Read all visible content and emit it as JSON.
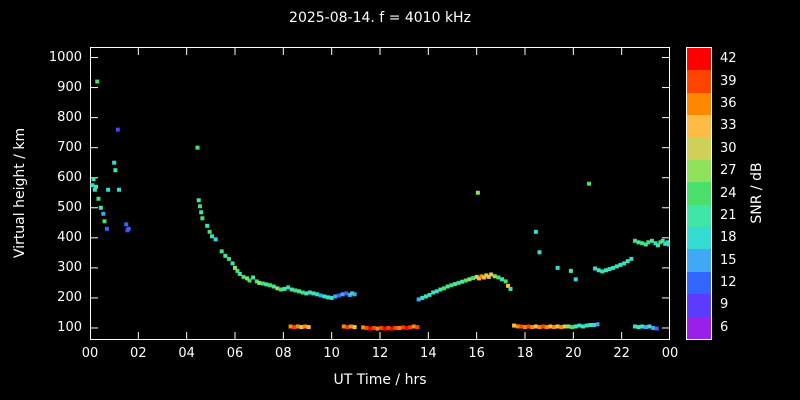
{
  "title": "2025-08-14. f = 4010 kHz",
  "axes": {
    "x": {
      "label": "UT Time / hrs",
      "tick_hours": [
        0,
        2,
        4,
        6,
        8,
        10,
        12,
        14,
        16,
        18,
        20,
        22,
        24
      ],
      "tick_labels": [
        "00",
        "02",
        "04",
        "06",
        "08",
        "10",
        "12",
        "14",
        "16",
        "18",
        "20",
        "22",
        "00"
      ]
    },
    "y": {
      "label": "Virtual height / km",
      "tick_values": [
        100,
        200,
        300,
        400,
        500,
        600,
        700,
        800,
        900,
        1000
      ]
    }
  },
  "colorbar": {
    "label": "SNR / dB",
    "stops": [
      {
        "value": 42,
        "color": "#ff0000"
      },
      {
        "value": 39,
        "color": "#ff4400"
      },
      {
        "value": 36,
        "color": "#ff8800"
      },
      {
        "value": 33,
        "color": "#ffbb44"
      },
      {
        "value": 30,
        "color": "#cfd157"
      },
      {
        "value": 27,
        "color": "#8fe05a"
      },
      {
        "value": 24,
        "color": "#4ade6b"
      },
      {
        "value": 21,
        "color": "#3fe6a8"
      },
      {
        "value": 18,
        "color": "#35dcd2"
      },
      {
        "value": 15,
        "color": "#3fa9f5"
      },
      {
        "value": 12,
        "color": "#3366ff"
      },
      {
        "value": 9,
        "color": "#5a3bff"
      },
      {
        "value": 6,
        "color": "#9a1fe8"
      }
    ]
  },
  "chart_data": {
    "type": "scatter",
    "title": "2025-08-14. f = 4010 kHz",
    "xlabel": "UT Time / hrs",
    "ylabel": "Virtual height / km",
    "colorbar_label": "SNR / dB",
    "xlim": [
      0,
      24
    ],
    "ylim": [
      60,
      1035
    ],
    "snr_range": [
      6,
      42
    ],
    "points_format": [
      "ut_hours",
      "virtual_height_km",
      "snr_db"
    ],
    "points": [
      [
        0.1,
        575,
        18
      ],
      [
        0.15,
        595,
        21
      ],
      [
        0.2,
        560,
        18
      ],
      [
        0.25,
        570,
        21
      ],
      [
        0.3,
        920,
        24
      ],
      [
        0.35,
        530,
        24
      ],
      [
        0.45,
        500,
        21
      ],
      [
        0.55,
        480,
        15
      ],
      [
        0.6,
        455,
        24
      ],
      [
        0.7,
        430,
        12
      ],
      [
        0.75,
        560,
        18
      ],
      [
        1.0,
        650,
        18
      ],
      [
        1.05,
        625,
        21
      ],
      [
        1.15,
        760,
        9
      ],
      [
        1.2,
        560,
        18
      ],
      [
        1.5,
        445,
        12
      ],
      [
        1.55,
        425,
        9
      ],
      [
        1.6,
        430,
        12
      ],
      [
        4.45,
        700,
        24
      ],
      [
        4.5,
        525,
        21
      ],
      [
        4.55,
        505,
        24
      ],
      [
        4.6,
        485,
        21
      ],
      [
        4.65,
        465,
        24
      ],
      [
        4.85,
        440,
        21
      ],
      [
        4.95,
        420,
        24
      ],
      [
        5.05,
        405,
        21
      ],
      [
        5.2,
        395,
        18
      ],
      [
        5.45,
        355,
        24
      ],
      [
        5.6,
        340,
        21
      ],
      [
        5.75,
        330,
        24
      ],
      [
        5.9,
        315,
        21
      ],
      [
        6.0,
        300,
        27
      ],
      [
        6.1,
        290,
        24
      ],
      [
        6.2,
        280,
        21
      ],
      [
        6.35,
        270,
        24
      ],
      [
        6.5,
        265,
        27
      ],
      [
        6.6,
        258,
        24
      ],
      [
        6.75,
        268,
        21
      ],
      [
        6.9,
        255,
        24
      ],
      [
        7.0,
        250,
        27
      ],
      [
        7.15,
        248,
        24
      ],
      [
        7.3,
        245,
        21
      ],
      [
        7.45,
        242,
        24
      ],
      [
        7.6,
        238,
        21
      ],
      [
        7.75,
        232,
        27
      ],
      [
        7.9,
        228,
        24
      ],
      [
        8.05,
        230,
        21
      ],
      [
        8.2,
        235,
        18
      ],
      [
        8.35,
        228,
        21
      ],
      [
        8.5,
        225,
        24
      ],
      [
        8.65,
        222,
        21
      ],
      [
        8.8,
        218,
        24
      ],
      [
        8.95,
        215,
        21
      ],
      [
        9.1,
        218,
        18
      ],
      [
        9.25,
        215,
        21
      ],
      [
        9.4,
        212,
        18
      ],
      [
        9.55,
        208,
        15
      ],
      [
        9.7,
        205,
        18
      ],
      [
        9.85,
        202,
        21
      ],
      [
        10.0,
        200,
        18
      ],
      [
        10.15,
        205,
        15
      ],
      [
        10.3,
        208,
        12
      ],
      [
        10.45,
        212,
        15
      ],
      [
        10.6,
        215,
        12
      ],
      [
        10.75,
        210,
        15
      ],
      [
        10.85,
        215,
        18
      ],
      [
        10.95,
        212,
        15
      ],
      [
        8.3,
        105,
        36
      ],
      [
        8.45,
        103,
        39
      ],
      [
        8.6,
        105,
        36
      ],
      [
        8.75,
        103,
        33
      ],
      [
        8.9,
        105,
        36
      ],
      [
        9.05,
        103,
        33
      ],
      [
        10.5,
        105,
        36
      ],
      [
        10.65,
        103,
        39
      ],
      [
        10.8,
        105,
        36
      ],
      [
        10.95,
        103,
        33
      ],
      [
        11.3,
        102,
        36
      ],
      [
        11.45,
        100,
        39
      ],
      [
        11.6,
        98,
        42
      ],
      [
        11.75,
        100,
        39
      ],
      [
        11.9,
        98,
        36
      ],
      [
        12.05,
        100,
        39
      ],
      [
        12.2,
        98,
        42
      ],
      [
        12.35,
        100,
        39
      ],
      [
        12.5,
        98,
        42
      ],
      [
        12.65,
        100,
        39
      ],
      [
        12.8,
        100,
        36
      ],
      [
        12.95,
        102,
        39
      ],
      [
        13.1,
        100,
        42
      ],
      [
        13.25,
        102,
        39
      ],
      [
        13.4,
        105,
        36
      ],
      [
        13.55,
        103,
        39
      ],
      [
        13.6,
        195,
        15
      ],
      [
        13.75,
        200,
        18
      ],
      [
        13.9,
        205,
        21
      ],
      [
        14.05,
        210,
        18
      ],
      [
        14.2,
        218,
        21
      ],
      [
        14.35,
        222,
        18
      ],
      [
        14.5,
        228,
        21
      ],
      [
        14.65,
        232,
        24
      ],
      [
        14.8,
        238,
        21
      ],
      [
        14.95,
        242,
        24
      ],
      [
        15.1,
        246,
        21
      ],
      [
        15.25,
        250,
        24
      ],
      [
        15.4,
        254,
        21
      ],
      [
        15.55,
        258,
        24
      ],
      [
        15.7,
        262,
        27
      ],
      [
        15.85,
        266,
        24
      ],
      [
        16.0,
        270,
        30
      ],
      [
        16.1,
        265,
        33
      ],
      [
        16.2,
        272,
        36
      ],
      [
        16.3,
        268,
        33
      ],
      [
        16.4,
        275,
        30
      ],
      [
        16.5,
        270,
        33
      ],
      [
        16.6,
        278,
        30
      ],
      [
        16.75,
        272,
        27
      ],
      [
        16.9,
        268,
        24
      ],
      [
        17.05,
        262,
        21
      ],
      [
        17.2,
        255,
        24
      ],
      [
        17.3,
        240,
        33
      ],
      [
        17.4,
        230,
        21
      ],
      [
        16.05,
        550,
        27
      ],
      [
        20.65,
        580,
        24
      ],
      [
        18.45,
        420,
        18
      ],
      [
        18.6,
        352,
        18
      ],
      [
        19.35,
        300,
        18
      ],
      [
        17.55,
        108,
        33
      ],
      [
        17.7,
        105,
        36
      ],
      [
        17.85,
        105,
        39
      ],
      [
        18.0,
        103,
        36
      ],
      [
        18.15,
        105,
        39
      ],
      [
        18.3,
        103,
        36
      ],
      [
        18.45,
        105,
        33
      ],
      [
        18.6,
        103,
        36
      ],
      [
        18.75,
        105,
        39
      ],
      [
        18.9,
        103,
        36
      ],
      [
        19.05,
        105,
        33
      ],
      [
        19.2,
        103,
        36
      ],
      [
        19.35,
        105,
        33
      ],
      [
        19.5,
        103,
        36
      ],
      [
        19.65,
        105,
        30
      ],
      [
        19.8,
        105,
        27
      ],
      [
        19.95,
        103,
        24
      ],
      [
        20.1,
        105,
        21
      ],
      [
        20.25,
        108,
        18
      ],
      [
        20.4,
        105,
        21
      ],
      [
        20.55,
        108,
        18
      ],
      [
        20.7,
        110,
        21
      ],
      [
        20.85,
        110,
        18
      ],
      [
        21.0,
        112,
        15
      ],
      [
        19.9,
        290,
        21
      ],
      [
        20.1,
        262,
        18
      ],
      [
        20.9,
        298,
        18
      ],
      [
        21.05,
        292,
        21
      ],
      [
        21.2,
        288,
        18
      ],
      [
        21.35,
        292,
        21
      ],
      [
        21.5,
        296,
        18
      ],
      [
        21.65,
        300,
        21
      ],
      [
        21.8,
        305,
        18
      ],
      [
        21.95,
        310,
        21
      ],
      [
        22.1,
        315,
        18
      ],
      [
        22.25,
        322,
        21
      ],
      [
        22.4,
        330,
        18
      ],
      [
        22.55,
        390,
        24
      ],
      [
        22.7,
        385,
        21
      ],
      [
        22.85,
        382,
        24
      ],
      [
        23.0,
        378,
        21
      ],
      [
        23.1,
        385,
        24
      ],
      [
        23.25,
        390,
        21
      ],
      [
        23.4,
        382,
        18
      ],
      [
        23.5,
        375,
        21
      ],
      [
        23.6,
        385,
        24
      ],
      [
        23.7,
        390,
        21
      ],
      [
        23.8,
        380,
        18
      ],
      [
        23.9,
        385,
        21
      ],
      [
        23.95,
        378,
        18
      ],
      [
        22.55,
        105,
        18
      ],
      [
        22.7,
        103,
        21
      ],
      [
        22.85,
        105,
        18
      ],
      [
        23.0,
        103,
        15
      ],
      [
        23.15,
        105,
        18
      ],
      [
        23.3,
        100,
        15
      ],
      [
        23.45,
        98,
        12
      ]
    ]
  }
}
